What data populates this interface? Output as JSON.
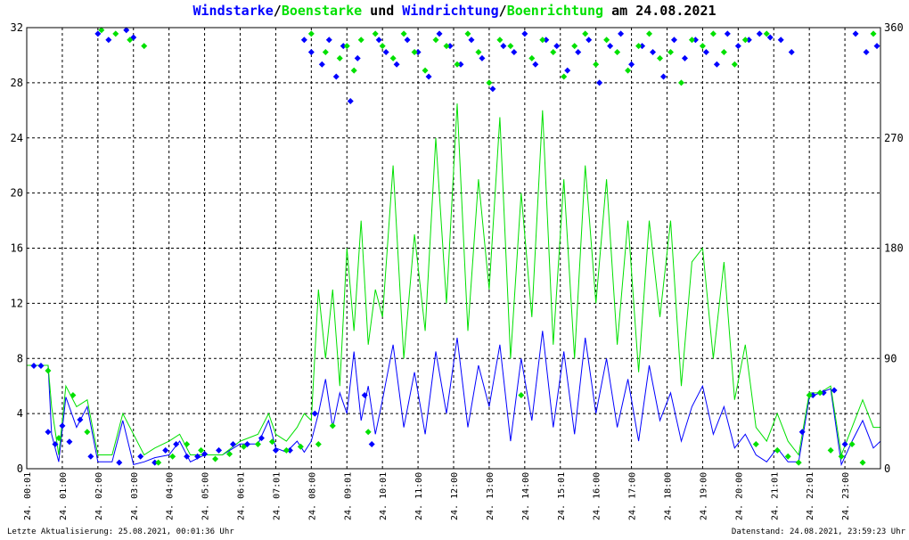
{
  "title": {
    "part1": "Windstarke",
    "sep1": "/",
    "part2": "Boenstarke",
    "mid": " und ",
    "part3": "Windrichtung",
    "sep2": "/",
    "part4": "Boenrichtung",
    "tail": " am 24.08.2021"
  },
  "footer": {
    "left": "Letzte Aktualisierung: 25.08.2021, 00:01:36 Uhr",
    "right": "Datenstand: 24.08.2021, 23:59:23 Uhr"
  },
  "colors": {
    "wind": "#0000ff",
    "gust": "#00e000",
    "grid": "#000000",
    "background": "#ffffff"
  },
  "chart_data": {
    "type": "line",
    "title": "Windstarke/Boenstarke und Windrichtung/Boenrichtung am 24.08.2021",
    "xlabel": "",
    "ylabel_left": "",
    "ylabel_right": "",
    "x_range_hours": [
      0,
      24
    ],
    "ylim_left": [
      0,
      32
    ],
    "ylim_right": [
      0,
      360
    ],
    "yticks_left": [
      "0",
      "4",
      "8",
      "12",
      "16",
      "20",
      "24",
      "28",
      "32"
    ],
    "yticks_right": [
      "0",
      "90",
      "180",
      "270",
      "360"
    ],
    "xticks": [
      "24. 00:01",
      "24. 01:00",
      "24. 02:00",
      "24. 03:00",
      "24. 04:00",
      "24. 05:00",
      "24. 06:01",
      "24. 07:01",
      "24. 08:00",
      "24. 09:01",
      "24. 10:01",
      "24. 11:00",
      "24. 12:00",
      "24. 13:00",
      "24. 14:00",
      "24. 15:01",
      "24. 16:00",
      "24. 17:00",
      "24. 18:00",
      "24. 19:00",
      "24. 20:00",
      "24. 21:01",
      "24. 22:01",
      "24. 23:00"
    ],
    "grid": true,
    "series": [
      {
        "name": "Windstarke",
        "axis": "left",
        "style": "line",
        "color": "#0000ff",
        "x": [
          0.0,
          0.6,
          0.7,
          0.9,
          1.1,
          1.4,
          1.7,
          2.0,
          2.4,
          2.7,
          3.0,
          3.3,
          3.6,
          4.0,
          4.3,
          4.6,
          5.0,
          5.5,
          6.0,
          6.5,
          6.8,
          7.0,
          7.3,
          7.6,
          7.8,
          8.0,
          8.2,
          8.4,
          8.6,
          8.8,
          9.0,
          9.2,
          9.4,
          9.6,
          9.8,
          10.0,
          10.3,
          10.6,
          10.9,
          11.2,
          11.5,
          11.8,
          12.1,
          12.4,
          12.7,
          13.0,
          13.3,
          13.6,
          13.9,
          14.2,
          14.5,
          14.8,
          15.1,
          15.4,
          15.7,
          16.0,
          16.3,
          16.6,
          16.9,
          17.2,
          17.5,
          17.8,
          18.1,
          18.4,
          18.7,
          19.0,
          19.3,
          19.6,
          19.9,
          20.2,
          20.5,
          20.8,
          21.1,
          21.4,
          21.7,
          22.0,
          22.3,
          22.6,
          22.9,
          23.2,
          23.5,
          23.8,
          24.0
        ],
        "y": [
          7.5,
          7.5,
          2.5,
          0.5,
          5.2,
          3.0,
          4.5,
          0.5,
          0.5,
          3.5,
          0.3,
          0.5,
          0.8,
          1.0,
          2.0,
          0.5,
          1.0,
          1.0,
          1.8,
          1.8,
          3.5,
          1.5,
          1.2,
          2.0,
          1.2,
          2.0,
          4.0,
          6.5,
          3.0,
          5.5,
          4.0,
          8.5,
          3.5,
          6.0,
          2.5,
          5.0,
          9.0,
          3.0,
          7.0,
          2.5,
          8.5,
          4.0,
          9.5,
          3.0,
          7.5,
          4.5,
          9.0,
          2.0,
          8.0,
          3.5,
          10.0,
          3.0,
          8.5,
          2.5,
          9.5,
          4.0,
          8.0,
          3.0,
          6.5,
          2.0,
          7.5,
          3.5,
          5.5,
          2.0,
          4.5,
          6.0,
          2.5,
          4.5,
          1.5,
          2.5,
          1.0,
          0.5,
          1.5,
          0.5,
          0.5,
          5.2,
          5.5,
          5.8,
          0.3,
          2.0,
          3.5,
          1.5,
          2.0
        ]
      },
      {
        "name": "Boenstarke",
        "axis": "left",
        "style": "line",
        "color": "#00e000",
        "x": [
          0.0,
          0.6,
          0.7,
          0.9,
          1.1,
          1.4,
          1.7,
          2.0,
          2.4,
          2.7,
          3.0,
          3.3,
          3.6,
          4.0,
          4.3,
          4.6,
          5.0,
          5.5,
          6.0,
          6.5,
          6.8,
          7.0,
          7.3,
          7.6,
          7.8,
          8.0,
          8.2,
          8.4,
          8.6,
          8.8,
          9.0,
          9.2,
          9.4,
          9.6,
          9.8,
          10.0,
          10.3,
          10.6,
          10.9,
          11.2,
          11.5,
          11.8,
          12.1,
          12.4,
          12.7,
          13.0,
          13.3,
          13.6,
          13.9,
          14.2,
          14.5,
          14.8,
          15.1,
          15.4,
          15.7,
          16.0,
          16.3,
          16.6,
          16.9,
          17.2,
          17.5,
          17.8,
          18.1,
          18.4,
          18.7,
          19.0,
          19.3,
          19.6,
          19.9,
          20.2,
          20.5,
          20.8,
          21.1,
          21.4,
          21.7,
          22.0,
          22.3,
          22.6,
          22.9,
          23.2,
          23.5,
          23.8,
          24.0
        ],
        "y": [
          7.5,
          7.5,
          4.5,
          1.0,
          6.0,
          4.5,
          5.0,
          1.0,
          1.0,
          4.0,
          2.5,
          1.0,
          1.5,
          2.0,
          2.5,
          1.0,
          1.0,
          1.0,
          2.0,
          2.5,
          4.0,
          2.5,
          2.0,
          3.0,
          4.0,
          3.5,
          13.0,
          8.0,
          13.0,
          6.0,
          16.0,
          10.0,
          18.0,
          9.0,
          13.0,
          11.0,
          22.0,
          8.0,
          17.0,
          10.0,
          24.0,
          12.0,
          26.5,
          10.0,
          21.0,
          13.0,
          25.5,
          8.0,
          20.0,
          11.0,
          26.0,
          9.0,
          21.0,
          8.0,
          22.0,
          12.0,
          21.0,
          9.0,
          18.0,
          7.0,
          18.0,
          11.0,
          18.0,
          6.0,
          15.0,
          16.0,
          8.0,
          15.0,
          5.0,
          9.0,
          3.0,
          2.0,
          4.0,
          2.0,
          1.0,
          5.5,
          5.5,
          6.0,
          1.0,
          3.0,
          5.0,
          3.0,
          3.0
        ]
      },
      {
        "name": "Windrichtung",
        "axis": "right",
        "style": "markers",
        "color": "#0000ff",
        "x": [
          0.2,
          0.4,
          0.6,
          0.8,
          1.0,
          1.2,
          1.5,
          1.8,
          2.0,
          2.3,
          2.6,
          2.8,
          3.0,
          3.2,
          3.6,
          3.9,
          4.2,
          4.5,
          4.8,
          5.0,
          5.4,
          5.8,
          6.2,
          6.6,
          7.0,
          7.4,
          7.8,
          8.0,
          8.1,
          8.3,
          8.5,
          8.7,
          8.9,
          9.1,
          9.3,
          9.5,
          9.7,
          9.9,
          10.1,
          10.4,
          10.7,
          11.0,
          11.3,
          11.6,
          11.9,
          12.2,
          12.5,
          12.8,
          13.1,
          13.4,
          13.7,
          14.0,
          14.3,
          14.6,
          14.9,
          15.2,
          15.5,
          15.8,
          16.1,
          16.4,
          16.7,
          17.0,
          17.3,
          17.6,
          17.9,
          18.2,
          18.5,
          18.8,
          19.1,
          19.4,
          19.7,
          20.0,
          20.3,
          20.6,
          20.9,
          21.2,
          21.5,
          21.8,
          22.1,
          22.4,
          22.7,
          23.0,
          23.3,
          23.6,
          23.9
        ],
        "y": [
          84,
          84,
          30,
          20,
          35,
          22,
          40,
          10,
          355,
          350,
          5,
          358,
          352,
          10,
          5,
          15,
          20,
          10,
          10,
          12,
          15,
          20,
          20,
          25,
          15,
          15,
          350,
          340,
          45,
          330,
          350,
          320,
          345,
          300,
          335,
          60,
          20,
          350,
          340,
          330,
          350,
          340,
          320,
          355,
          345,
          330,
          350,
          335,
          310,
          345,
          340,
          355,
          330,
          350,
          345,
          325,
          340,
          350,
          315,
          345,
          355,
          330,
          345,
          340,
          320,
          350,
          335,
          350,
          340,
          330,
          355,
          345,
          350,
          355,
          352,
          350,
          340,
          30,
          60,
          62,
          64,
          20,
          355,
          340,
          345
        ]
      },
      {
        "name": "Boenrichtung",
        "axis": "right",
        "style": "markers",
        "color": "#00e000",
        "x": [
          0.6,
          0.9,
          1.3,
          1.7,
          2.1,
          2.5,
          2.9,
          3.3,
          3.7,
          4.1,
          4.5,
          4.9,
          5.3,
          5.7,
          6.1,
          6.5,
          6.9,
          7.3,
          7.7,
          8.0,
          8.2,
          8.4,
          8.6,
          8.8,
          9.0,
          9.2,
          9.4,
          9.6,
          9.8,
          10.0,
          10.3,
          10.6,
          10.9,
          11.2,
          11.5,
          11.8,
          12.1,
          12.4,
          12.7,
          13.0,
          13.3,
          13.6,
          13.9,
          14.2,
          14.5,
          14.8,
          15.1,
          15.4,
          15.7,
          16.0,
          16.3,
          16.6,
          16.9,
          17.2,
          17.5,
          17.8,
          18.1,
          18.4,
          18.7,
          19.0,
          19.3,
          19.6,
          19.9,
          20.2,
          20.5,
          20.8,
          21.1,
          21.4,
          21.7,
          22.0,
          22.3,
          22.6,
          22.9,
          23.2,
          23.5,
          23.8
        ],
        "y": [
          80,
          25,
          60,
          30,
          358,
          355,
          350,
          345,
          5,
          10,
          20,
          15,
          8,
          12,
          18,
          20,
          22,
          15,
          18,
          355,
          20,
          340,
          35,
          335,
          345,
          325,
          350,
          30,
          355,
          345,
          335,
          355,
          340,
          325,
          350,
          345,
          330,
          355,
          340,
          315,
          350,
          345,
          60,
          335,
          350,
          340,
          320,
          345,
          355,
          330,
          350,
          340,
          325,
          345,
          355,
          335,
          340,
          315,
          350,
          345,
          355,
          340,
          330,
          350,
          20,
          355,
          15,
          10,
          5,
          60,
          62,
          15,
          10,
          20,
          5,
          355
        ]
      }
    ]
  }
}
